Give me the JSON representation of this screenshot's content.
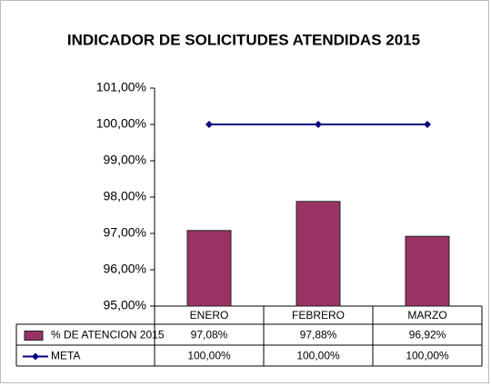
{
  "chart_data": {
    "type": "bar",
    "title": "INDICADOR DE SOLICITUDES ATENDIDAS 2015",
    "categories": [
      "ENERO",
      "FEBRERO",
      "MARZO"
    ],
    "series": [
      {
        "name": "% DE ATENCION 2015",
        "type": "bar",
        "color": "#993366",
        "values": [
          97.08,
          97.88,
          96.92
        ],
        "value_labels": [
          "97,08%",
          "97,88%",
          "96,92%"
        ]
      },
      {
        "name": "META",
        "type": "line",
        "color": "#000080",
        "values": [
          100,
          100,
          100
        ],
        "value_labels": [
          "100,00%",
          "100,00%",
          "100,00%"
        ]
      }
    ],
    "ylim": [
      95,
      101
    ],
    "yticks": [
      {
        "value": 95,
        "label": "95,00%"
      },
      {
        "value": 96,
        "label": "96,00%"
      },
      {
        "value": 97,
        "label": "97,00%"
      },
      {
        "value": 98,
        "label": "98,00%"
      },
      {
        "value": 99,
        "label": "99,00%"
      },
      {
        "value": 100,
        "label": "100,00%"
      },
      {
        "value": 101,
        "label": "101,00%"
      }
    ],
    "grid": false
  }
}
